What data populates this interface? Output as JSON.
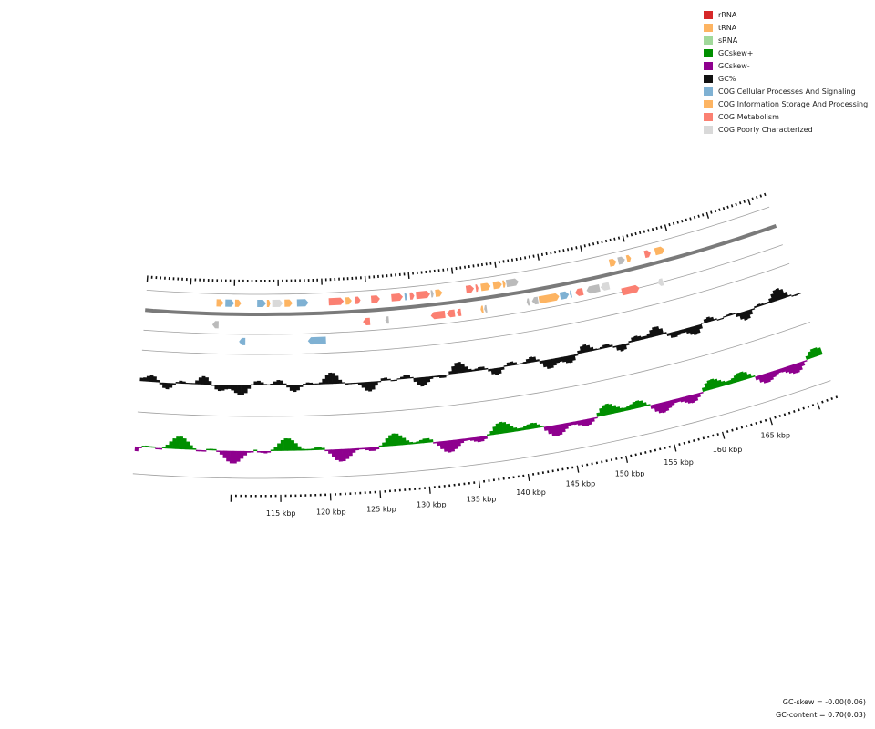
{
  "legend": [
    {
      "label": "rRNA",
      "color": "#d62728"
    },
    {
      "label": "tRNA",
      "color": "#fdb462"
    },
    {
      "label": "sRNA",
      "color": "#a1d99b"
    },
    {
      "label": "GCskew+",
      "color": "#008f00"
    },
    {
      "label": "GCskew-",
      "color": "#8e008e"
    },
    {
      "label": "GC%",
      "color": "#111111"
    },
    {
      "label": "COG Cellular Processes And Signaling",
      "color": "#7fb1d3"
    },
    {
      "label": "COG Information Storage And Processing",
      "color": "#fdb462"
    },
    {
      "label": "COG Metabolism",
      "color": "#fb8072"
    },
    {
      "label": "COG Poorly Characterized",
      "color": "#d9d9d9"
    }
  ],
  "colors": {
    "backbone": "#7a7a7a",
    "guide": "#a0a0a0",
    "gc": "#111111",
    "skew_pos": "#008f00",
    "skew_neg": "#8e008e",
    "cog_cellular": "#7fb1d3",
    "cog_info": "#fdb462",
    "cog_metabolism": "#fb8072",
    "cog_poor": "#d9d9d9",
    "cog_unknown": "#bbbbbb"
  },
  "axis": {
    "unit": "kbp",
    "ticks": [
      115,
      120,
      125,
      130,
      135,
      140,
      145,
      150,
      155,
      160,
      165
    ],
    "tick_labels": [
      "115 kbp",
      "120 kbp",
      "125 kbp",
      "130 kbp",
      "135 kbp",
      "140 kbp",
      "145 kbp",
      "150 kbp",
      "155 kbp",
      "160 kbp",
      "165 kbp"
    ]
  },
  "stats": {
    "gc_skew": "GC-skew = -0.00(0.06)",
    "gc_content": "GC-content = 0.70(0.03)"
  }
}
